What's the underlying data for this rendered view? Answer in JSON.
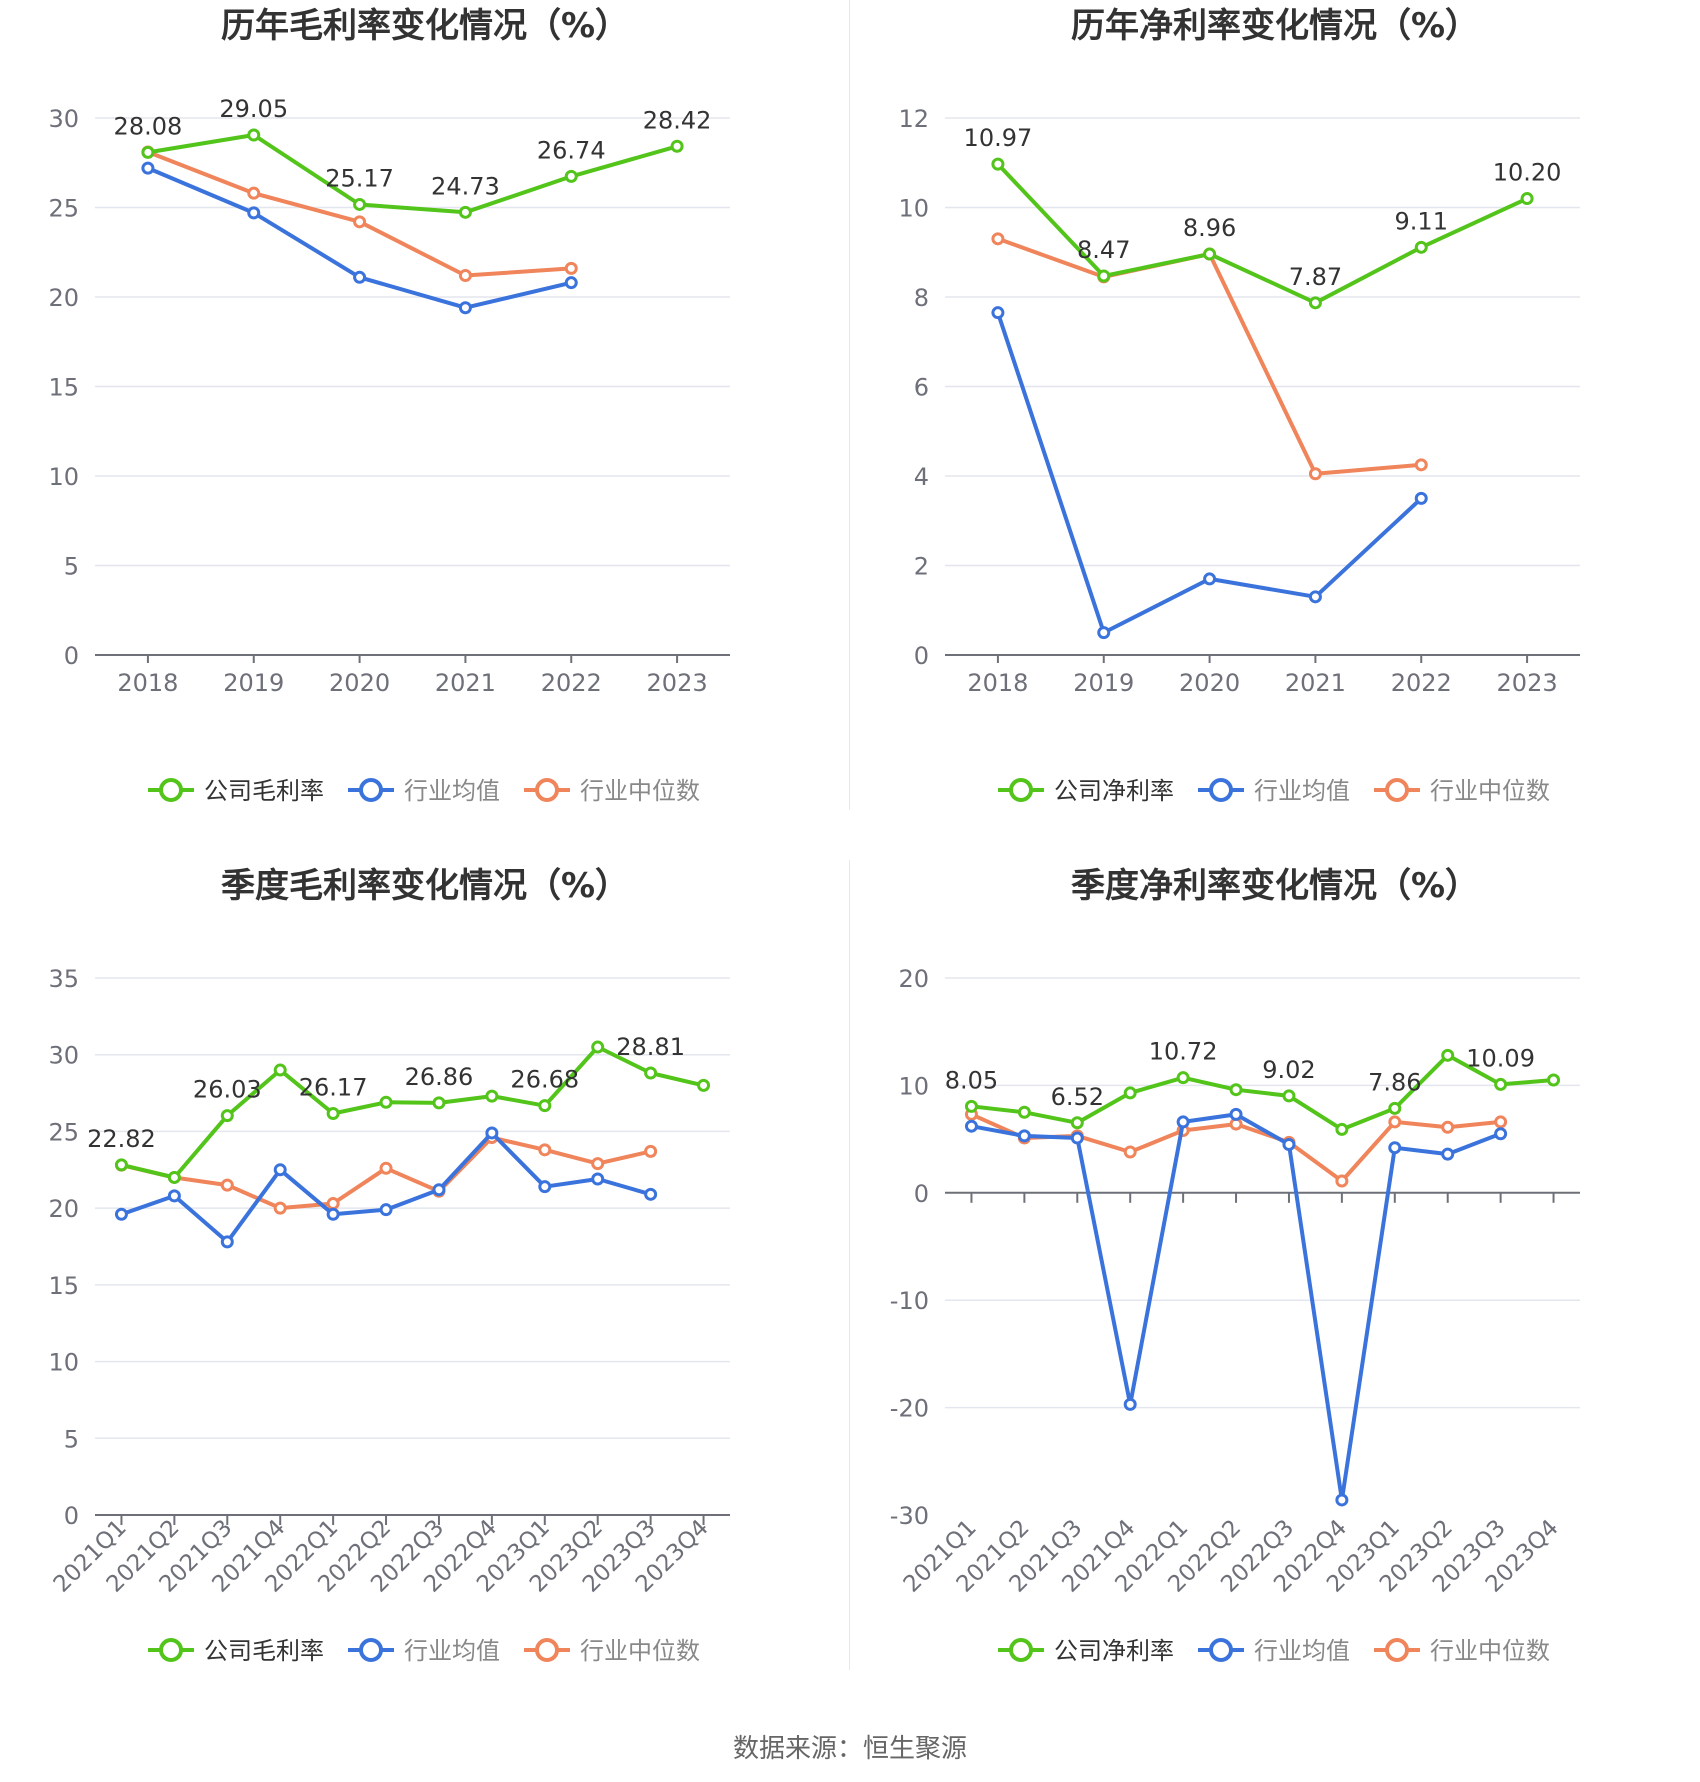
{
  "source": "数据来源：恒生聚源",
  "colors": {
    "company": "#52c41a",
    "average": "#3b73dc",
    "median": "#f0845a"
  },
  "chart_data": [
    {
      "type": "line",
      "title": "历年毛利率变化情况（%）",
      "categories": [
        "2018",
        "2019",
        "2020",
        "2021",
        "2022",
        "2023"
      ],
      "ylim": [
        0,
        30
      ],
      "yticks": [
        0,
        5,
        10,
        15,
        20,
        25,
        30
      ],
      "xtick_rotate": false,
      "grid": true,
      "legend_position": "bottom",
      "series": [
        {
          "name": "公司毛利率",
          "color": "#52c41a",
          "values": [
            28.08,
            29.05,
            25.17,
            24.73,
            26.74,
            28.42
          ],
          "labels": [
            "28.08",
            "29.05",
            "25.17",
            "24.73",
            "26.74",
            "28.42"
          ]
        },
        {
          "name": "行业均值",
          "color": "#3b73dc",
          "values": [
            27.2,
            24.7,
            21.1,
            19.4,
            20.8,
            null
          ]
        },
        {
          "name": "行业中位数",
          "color": "#f0845a",
          "values": [
            28.1,
            25.8,
            24.2,
            21.2,
            21.6,
            null
          ]
        }
      ]
    },
    {
      "type": "line",
      "title": "历年净利率变化情况（%）",
      "categories": [
        "2018",
        "2019",
        "2020",
        "2021",
        "2022",
        "2023"
      ],
      "ylim": [
        0,
        12
      ],
      "yticks": [
        0,
        2,
        4,
        6,
        8,
        10,
        12
      ],
      "xtick_rotate": false,
      "grid": true,
      "legend_position": "bottom",
      "series": [
        {
          "name": "公司净利率",
          "color": "#52c41a",
          "values": [
            10.97,
            8.47,
            8.96,
            7.87,
            9.11,
            10.2
          ],
          "labels": [
            "10.97",
            "8.47",
            "8.96",
            "7.87",
            "9.11",
            "10.20"
          ]
        },
        {
          "name": "行业均值",
          "color": "#3b73dc",
          "values": [
            7.65,
            0.5,
            1.7,
            1.3,
            3.5,
            null
          ]
        },
        {
          "name": "行业中位数",
          "color": "#f0845a",
          "values": [
            9.3,
            8.45,
            8.96,
            4.05,
            4.25,
            null
          ]
        }
      ]
    },
    {
      "type": "line",
      "title": "季度毛利率变化情况（%）",
      "categories": [
        "2021Q1",
        "2021Q2",
        "2021Q3",
        "2021Q4",
        "2022Q1",
        "2022Q2",
        "2022Q3",
        "2022Q4",
        "2023Q1",
        "2023Q2",
        "2023Q3",
        "2023Q4"
      ],
      "ylim": [
        0,
        35
      ],
      "yticks": [
        0,
        5,
        10,
        15,
        20,
        25,
        30,
        35
      ],
      "xtick_rotate": true,
      "grid": true,
      "legend_position": "bottom",
      "series": [
        {
          "name": "公司毛利率",
          "color": "#52c41a",
          "values": [
            22.82,
            22.0,
            26.03,
            29.0,
            26.17,
            26.9,
            26.86,
            27.3,
            26.68,
            30.5,
            28.81,
            28.0
          ],
          "labels": [
            "22.82",
            "",
            "26.03",
            "",
            "26.17",
            "",
            "26.86",
            "",
            "26.68",
            "",
            "28.81",
            ""
          ]
        },
        {
          "name": "行业均值",
          "color": "#3b73dc",
          "values": [
            19.6,
            20.8,
            17.8,
            22.5,
            19.6,
            19.9,
            21.2,
            24.9,
            21.4,
            21.9,
            20.9,
            null
          ]
        },
        {
          "name": "行业中位数",
          "color": "#f0845a",
          "values": [
            22.8,
            22.0,
            21.5,
            20.0,
            20.3,
            22.6,
            21.1,
            24.6,
            23.8,
            22.9,
            23.7,
            null
          ]
        }
      ]
    },
    {
      "type": "line",
      "title": "季度净利率变化情况（%）",
      "categories": [
        "2021Q1",
        "2021Q2",
        "2021Q3",
        "2021Q4",
        "2022Q1",
        "2022Q2",
        "2022Q3",
        "2022Q4",
        "2023Q1",
        "2023Q2",
        "2023Q3",
        "2023Q4"
      ],
      "ylim": [
        -30,
        20
      ],
      "yticks": [
        -30,
        -20,
        -10,
        0,
        10,
        20
      ],
      "xtick_rotate": true,
      "grid": true,
      "legend_position": "bottom",
      "series": [
        {
          "name": "公司净利率",
          "color": "#52c41a",
          "values": [
            8.05,
            7.5,
            6.52,
            9.3,
            10.72,
            9.6,
            9.02,
            5.9,
            7.86,
            12.8,
            10.09,
            10.5
          ],
          "labels": [
            "8.05",
            "",
            "6.52",
            "",
            "10.72",
            "",
            "9.02",
            "",
            "7.86",
            "",
            "10.09",
            ""
          ]
        },
        {
          "name": "行业均值",
          "color": "#3b73dc",
          "values": [
            6.2,
            5.3,
            5.1,
            -19.7,
            6.6,
            7.3,
            4.5,
            -28.6,
            4.2,
            3.6,
            5.5,
            null
          ]
        },
        {
          "name": "行业中位数",
          "color": "#f0845a",
          "values": [
            7.3,
            5.1,
            5.3,
            3.8,
            5.8,
            6.4,
            4.7,
            1.1,
            6.6,
            6.1,
            6.6,
            null
          ]
        }
      ]
    }
  ]
}
